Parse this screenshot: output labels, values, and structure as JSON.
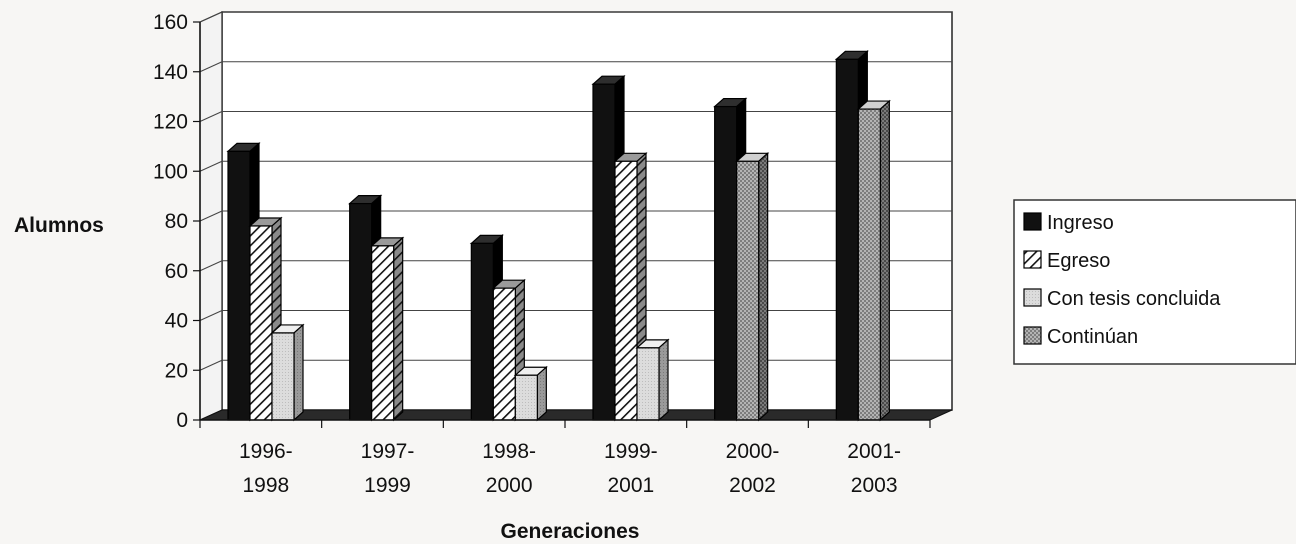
{
  "chart_data": {
    "type": "bar",
    "xlabel": "Generaciones",
    "ylabel": "Alumnos",
    "ylim": [
      0,
      160
    ],
    "yticks": [
      0,
      20,
      40,
      60,
      80,
      100,
      120,
      140,
      160
    ],
    "categories": [
      [
        "1996-",
        "1998"
      ],
      [
        "1997-",
        "1999"
      ],
      [
        "1998-",
        "2000"
      ],
      [
        "1999-",
        "2001"
      ],
      [
        "2000-",
        "2002"
      ],
      [
        "2001-",
        "2003"
      ]
    ],
    "series": [
      {
        "name": "Ingreso",
        "values": [
          108,
          87,
          71,
          135,
          126,
          145
        ],
        "color": "#111111",
        "pattern": "solid"
      },
      {
        "name": "Egreso",
        "values": [
          78,
          70,
          53,
          104,
          0,
          0
        ],
        "color": "#ffffff",
        "pattern": "diagonal-hatch"
      },
      {
        "name": "Con tesis concluida",
        "values": [
          35,
          0,
          18,
          29,
          0,
          0
        ],
        "color": "#d6d6d6",
        "pattern": "light-gray"
      },
      {
        "name": "Continúan",
        "values": [
          0,
          0,
          0,
          0,
          104,
          125
        ],
        "color": "#a8a8a8",
        "pattern": "dotted-gray"
      }
    ],
    "legend_position": "right",
    "grid": true
  }
}
